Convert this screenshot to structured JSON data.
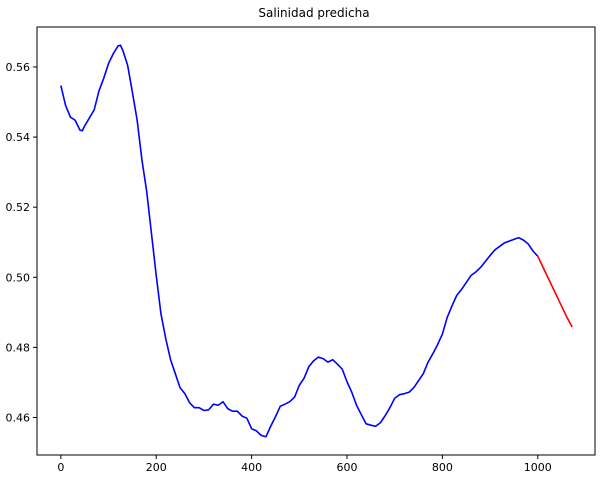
{
  "chart_data": {
    "type": "line",
    "title": "Salinidad predicha",
    "xlabel": "",
    "ylabel": "",
    "xlim": [
      -50,
      1120
    ],
    "ylim": [
      0.4493,
      0.5714
    ],
    "xticks": [
      0,
      200,
      400,
      600,
      800,
      1000
    ],
    "yticks": [
      0.46,
      0.48,
      0.5,
      0.52,
      0.54,
      0.56
    ],
    "xtick_labels": [
      "0",
      "200",
      "400",
      "600",
      "800",
      "1000"
    ],
    "ytick_labels": [
      "0.46",
      "0.48",
      "0.50",
      "0.52",
      "0.54",
      "0.56"
    ],
    "grid": false,
    "series": [
      {
        "color": "#0000ff",
        "x": [
          0,
          10,
          20,
          30,
          40,
          45,
          50,
          60,
          70,
          80,
          90,
          100,
          110,
          120,
          125,
          130,
          140,
          150,
          160,
          170,
          180,
          190,
          200,
          210,
          220,
          230,
          240,
          250,
          260,
          270,
          280,
          290,
          300,
          310,
          320,
          330,
          340,
          350,
          360,
          370,
          380,
          390,
          400,
          410,
          420,
          430,
          440,
          450,
          460,
          470,
          480,
          490,
          500,
          510,
          520,
          530,
          540,
          550,
          560,
          570,
          580,
          590,
          600,
          610,
          620,
          630,
          640,
          650,
          660,
          670,
          680,
          690,
          700,
          710,
          720,
          730,
          740,
          750,
          760,
          770,
          780,
          790,
          800,
          810,
          820,
          830,
          840,
          850,
          860,
          870,
          880,
          890,
          900,
          910,
          920,
          930,
          940,
          950,
          960,
          970,
          980,
          990,
          1000
        ],
        "y": [
          0.5547,
          0.549,
          0.5457,
          0.5448,
          0.542,
          0.5418,
          0.5432,
          0.5455,
          0.5478,
          0.5532,
          0.5568,
          0.561,
          0.5638,
          0.566,
          0.5662,
          0.5647,
          0.5605,
          0.5528,
          0.5448,
          0.5335,
          0.5245,
          0.5125,
          0.5005,
          0.4895,
          0.4825,
          0.4765,
          0.4725,
          0.4685,
          0.4668,
          0.4642,
          0.4628,
          0.4628,
          0.462,
          0.4622,
          0.4638,
          0.4635,
          0.4645,
          0.4625,
          0.4618,
          0.4618,
          0.4604,
          0.4598,
          0.4568,
          0.4562,
          0.4549,
          0.4545,
          0.4575,
          0.4602,
          0.4632,
          0.4638,
          0.4645,
          0.4658,
          0.4692,
          0.4712,
          0.4745,
          0.4762,
          0.4772,
          0.4768,
          0.4758,
          0.4765,
          0.4752,
          0.4738,
          0.4702,
          0.4672,
          0.4635,
          0.4608,
          0.4582,
          0.4578,
          0.4575,
          0.4585,
          0.4605,
          0.4628,
          0.4655,
          0.4665,
          0.4668,
          0.4672,
          0.4685,
          0.4705,
          0.4725,
          0.4758,
          0.4782,
          0.4808,
          0.4838,
          0.4885,
          0.4918,
          0.4948,
          0.4965,
          0.4985,
          0.5005,
          0.5015,
          0.5028,
          0.5045,
          0.5062,
          0.5078,
          0.5088,
          0.5098,
          0.5103,
          0.5108,
          0.5113,
          0.5106,
          0.5095,
          0.5075,
          0.506
        ]
      },
      {
        "color": "#ff0000",
        "x": [
          1000,
          1020,
          1040,
          1060,
          1072
        ],
        "y": [
          0.506,
          0.5003,
          0.4946,
          0.4889,
          0.4858
        ]
      }
    ]
  }
}
